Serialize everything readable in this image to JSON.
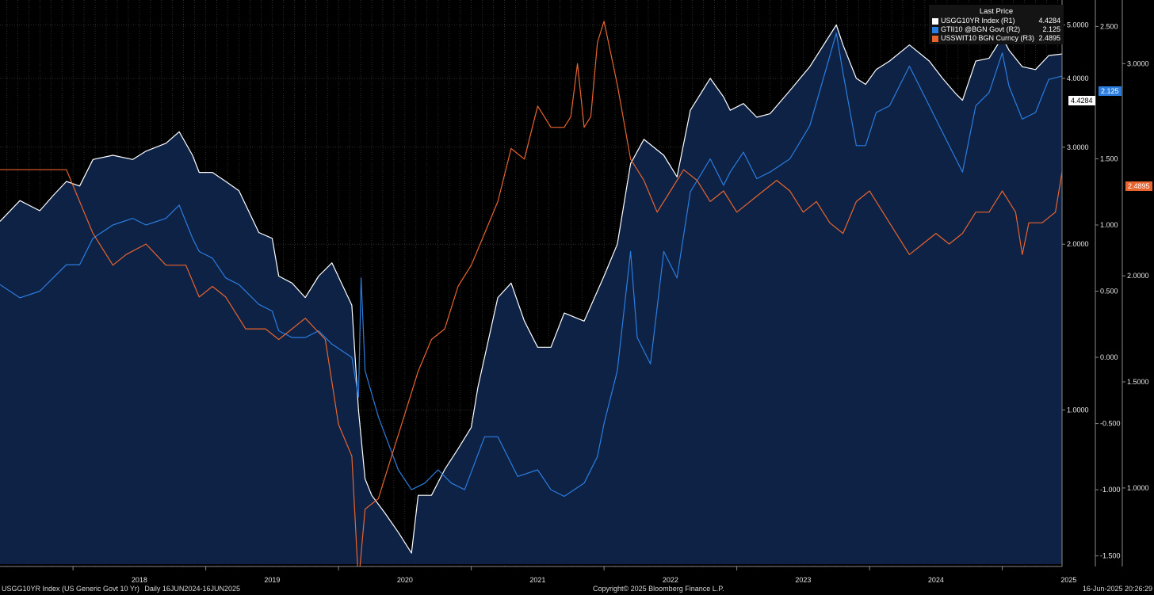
{
  "chart_data": {
    "type": "line",
    "ticker": "USGG10YR Index (US Generic Govt 10 Yr)",
    "period": "Daily 16JUN2024-16JUN2025",
    "copyright": "Copyright© 2025 Bloomberg Finance L.P.",
    "timestamp": "16-Jun-2025 20:26:29",
    "legend_title": "Last Price",
    "x_ticks": [
      "2018",
      "2019",
      "2020",
      "2021",
      "2022",
      "2023",
      "2024",
      "2025"
    ],
    "x_range": [
      2017.45,
      2025.45
    ],
    "axes": {
      "R1": {
        "scale": "log",
        "range": [
          0.52,
          5.55
        ],
        "ticks": [
          "5.0000",
          "4.0000",
          "3.0000",
          "2.0000",
          "1.0000"
        ],
        "tick_values": [
          5,
          4,
          3,
          2,
          1
        ]
      },
      "R2": {
        "scale": "linear",
        "range": [
          -1.58,
          2.7
        ],
        "ticks": [
          "2.500",
          "1.500",
          "1.000",
          "0.500",
          "0.000",
          "-0.500",
          "-1.000",
          "-1.500"
        ],
        "tick_values": [
          2.5,
          1.5,
          1.0,
          0.5,
          0.0,
          -0.5,
          -1.0,
          -1.5
        ]
      },
      "R3": {
        "scale": "linear",
        "range": [
          0.63,
          3.3
        ],
        "ticks": [
          "3.0000",
          "2.0000",
          "1.5000",
          "1.0000"
        ],
        "tick_values": [
          3.0,
          2.0,
          1.5,
          1.0
        ]
      }
    },
    "grid": true,
    "legend_position": "top-right",
    "series": [
      {
        "name": "USGG10YR Index  (R1)",
        "axis": "R1",
        "color": "#ffffff",
        "last": "4.4284",
        "fill": true,
        "x": [
          2017.45,
          2017.6,
          2017.75,
          2017.85,
          2017.95,
          2018.05,
          2018.15,
          2018.3,
          2018.45,
          2018.55,
          2018.7,
          2018.8,
          2018.9,
          2018.95,
          2019.05,
          2019.15,
          2019.25,
          2019.4,
          2019.5,
          2019.55,
          2019.65,
          2019.75,
          2019.85,
          2019.95,
          2020.1,
          2020.15,
          2020.2,
          2020.25,
          2020.35,
          2020.45,
          2020.55,
          2020.6,
          2020.7,
          2020.8,
          2020.9,
          2021.0,
          2021.05,
          2021.2,
          2021.3,
          2021.4,
          2021.5,
          2021.6,
          2021.7,
          2021.85,
          2022.0,
          2022.1,
          2022.2,
          2022.3,
          2022.45,
          2022.55,
          2022.65,
          2022.8,
          2022.9,
          2022.95,
          2023.05,
          2023.15,
          2023.25,
          2023.4,
          2023.55,
          2023.75,
          2023.8,
          2023.9,
          2023.97,
          2024.05,
          2024.15,
          2024.3,
          2024.45,
          2024.55,
          2024.65,
          2024.7,
          2024.8,
          2024.9,
          2025.0,
          2025.05,
          2025.15,
          2025.25,
          2025.35,
          2025.45
        ],
        "y": [
          2.2,
          2.4,
          2.3,
          2.45,
          2.6,
          2.55,
          2.85,
          2.9,
          2.85,
          2.95,
          3.05,
          3.2,
          2.9,
          2.7,
          2.7,
          2.6,
          2.5,
          2.1,
          2.05,
          1.75,
          1.7,
          1.6,
          1.75,
          1.85,
          1.55,
          1.0,
          0.75,
          0.7,
          0.65,
          0.6,
          0.55,
          0.7,
          0.7,
          0.78,
          0.85,
          0.93,
          1.1,
          1.6,
          1.7,
          1.45,
          1.3,
          1.3,
          1.5,
          1.45,
          1.75,
          2.0,
          2.8,
          3.1,
          2.9,
          2.65,
          3.5,
          4.0,
          3.7,
          3.5,
          3.6,
          3.4,
          3.45,
          3.8,
          4.2,
          5.0,
          4.6,
          4.0,
          3.9,
          4.15,
          4.3,
          4.6,
          4.3,
          4.0,
          3.75,
          3.65,
          4.3,
          4.35,
          4.75,
          4.5,
          4.2,
          4.15,
          4.4,
          4.43
        ]
      },
      {
        "name": "GTII10 @BGN Govt  (R2)",
        "axis": "R2",
        "color": "#2b7de0",
        "last": "2.125",
        "x": [
          2017.45,
          2017.6,
          2017.75,
          2017.85,
          2017.95,
          2018.05,
          2018.15,
          2018.3,
          2018.45,
          2018.55,
          2018.7,
          2018.8,
          2018.9,
          2018.95,
          2019.05,
          2019.15,
          2019.25,
          2019.4,
          2019.5,
          2019.55,
          2019.65,
          2019.75,
          2019.85,
          2019.95,
          2020.1,
          2020.15,
          2020.17,
          2020.2,
          2020.3,
          2020.45,
          2020.55,
          2020.65,
          2020.75,
          2020.85,
          2020.95,
          2021.1,
          2021.2,
          2021.35,
          2021.5,
          2021.6,
          2021.7,
          2021.85,
          2021.95,
          2022.0,
          2022.1,
          2022.2,
          2022.25,
          2022.35,
          2022.45,
          2022.55,
          2022.65,
          2022.8,
          2022.9,
          2022.95,
          2023.05,
          2023.15,
          2023.25,
          2023.4,
          2023.55,
          2023.75,
          2023.8,
          2023.9,
          2023.97,
          2024.05,
          2024.15,
          2024.3,
          2024.45,
          2024.55,
          2024.65,
          2024.7,
          2024.8,
          2024.9,
          2025.0,
          2025.05,
          2025.15,
          2025.25,
          2025.35,
          2025.45
        ],
        "y": [
          0.55,
          0.45,
          0.5,
          0.6,
          0.7,
          0.7,
          0.9,
          1.0,
          1.05,
          1.0,
          1.05,
          1.15,
          0.9,
          0.8,
          0.75,
          0.6,
          0.55,
          0.4,
          0.35,
          0.2,
          0.15,
          0.15,
          0.2,
          0.1,
          0.0,
          -0.3,
          0.6,
          -0.1,
          -0.45,
          -0.85,
          -1.0,
          -0.95,
          -0.85,
          -0.95,
          -1.0,
          -0.6,
          -0.6,
          -0.9,
          -0.85,
          -1.0,
          -1.05,
          -0.95,
          -0.75,
          -0.5,
          -0.1,
          0.8,
          0.15,
          -0.05,
          0.8,
          0.6,
          1.25,
          1.5,
          1.3,
          1.4,
          1.55,
          1.35,
          1.4,
          1.5,
          1.75,
          2.45,
          2.15,
          1.6,
          1.6,
          1.85,
          1.9,
          2.2,
          1.9,
          1.7,
          1.5,
          1.4,
          1.9,
          2.0,
          2.3,
          2.05,
          1.8,
          1.85,
          2.1,
          2.125
        ]
      },
      {
        "name": "USSWIT10 BGN Curncy  (R3)",
        "axis": "R3",
        "color": "#e8642f",
        "last": "2.4895",
        "x": [
          2017.45,
          2017.6,
          2017.75,
          2017.85,
          2017.95,
          2018.05,
          2018.15,
          2018.3,
          2018.4,
          2018.55,
          2018.7,
          2018.85,
          2018.95,
          2019.05,
          2019.15,
          2019.3,
          2019.45,
          2019.55,
          2019.65,
          2019.75,
          2019.9,
          2020.0,
          2020.1,
          2020.15,
          2020.2,
          2020.3,
          2020.4,
          2020.5,
          2020.6,
          2020.7,
          2020.8,
          2020.9,
          2021.0,
          2021.1,
          2021.2,
          2021.3,
          2021.4,
          2021.5,
          2021.6,
          2021.7,
          2021.75,
          2021.8,
          2021.85,
          2021.9,
          2021.95,
          2022.0,
          2022.05,
          2022.1,
          2022.2,
          2022.3,
          2022.4,
          2022.5,
          2022.6,
          2022.7,
          2022.8,
          2022.9,
          2023.0,
          2023.1,
          2023.2,
          2023.3,
          2023.4,
          2023.5,
          2023.6,
          2023.7,
          2023.8,
          2023.9,
          2024.0,
          2024.1,
          2024.2,
          2024.3,
          2024.4,
          2024.5,
          2024.6,
          2024.7,
          2024.8,
          2024.9,
          2025.0,
          2025.1,
          2025.15,
          2025.2,
          2025.3,
          2025.4,
          2025.45
        ],
        "y": [
          2.5,
          2.5,
          2.5,
          2.5,
          2.5,
          2.35,
          2.2,
          2.05,
          2.1,
          2.15,
          2.05,
          2.05,
          1.9,
          1.95,
          1.9,
          1.75,
          1.75,
          1.7,
          1.75,
          1.8,
          1.7,
          1.3,
          1.15,
          0.55,
          0.9,
          0.95,
          1.15,
          1.35,
          1.55,
          1.7,
          1.75,
          1.95,
          2.05,
          2.2,
          2.35,
          2.6,
          2.55,
          2.8,
          2.7,
          2.7,
          2.75,
          3.0,
          2.7,
          2.75,
          3.1,
          3.2,
          3.05,
          2.9,
          2.55,
          2.45,
          2.3,
          2.4,
          2.5,
          2.45,
          2.35,
          2.4,
          2.3,
          2.35,
          2.4,
          2.45,
          2.4,
          2.3,
          2.35,
          2.25,
          2.2,
          2.35,
          2.4,
          2.3,
          2.2,
          2.1,
          2.15,
          2.2,
          2.15,
          2.2,
          2.3,
          2.3,
          2.4,
          2.3,
          2.1,
          2.25,
          2.25,
          2.3,
          2.4895
        ]
      }
    ]
  }
}
